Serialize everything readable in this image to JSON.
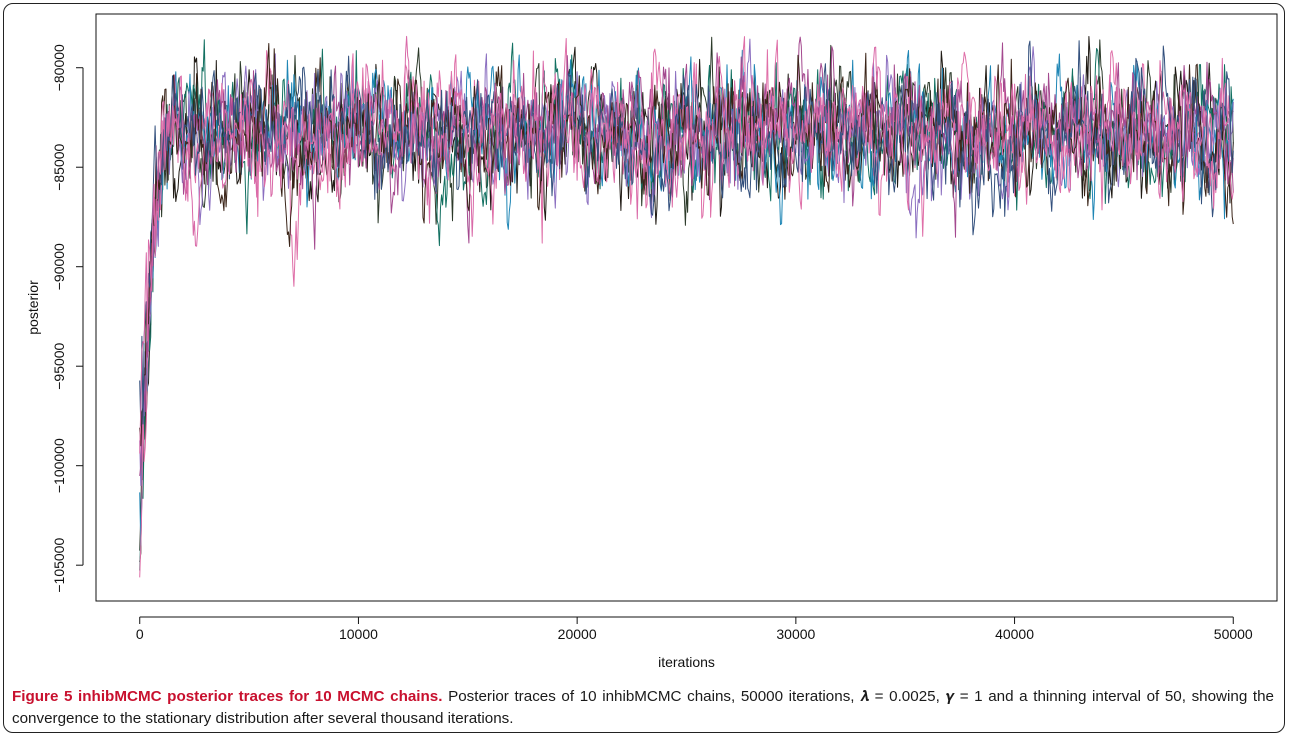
{
  "chart_data": {
    "type": "line",
    "title": "",
    "xlabel": "iterations",
    "ylabel": "posterior",
    "xlim": [
      -2000,
      52000
    ],
    "ylim": [
      -106800,
      -77300
    ],
    "x_ticks": [
      0,
      10000,
      20000,
      30000,
      40000,
      50000
    ],
    "x_tick_labels": [
      "0",
      "10000",
      "20000",
      "30000",
      "40000",
      "50000"
    ],
    "y_ticks": [
      -105000,
      -100000,
      -95000,
      -90000,
      -85000,
      -80000
    ],
    "y_tick_labels": [
      "−105000",
      "−100000",
      "−95000",
      "−90000",
      "−85000",
      "−80000"
    ],
    "grid": false,
    "legend": "none",
    "thinning_interval": 50,
    "n_chains": 10,
    "series": [
      {
        "color": "#1f1a14",
        "start": -101000,
        "min": -104400,
        "dip_depth": 7500,
        "dip_rate": 0.1,
        "seed": 11
      },
      {
        "color": "#2c3a2a",
        "start": -99000,
        "min": -102500,
        "dip_depth": 7000,
        "dip_rate": 0.09,
        "seed": 23
      },
      {
        "color": "#127061",
        "start": -100500,
        "min": -103500,
        "dip_depth": 6000,
        "dip_rate": 0.07,
        "seed": 37
      },
      {
        "color": "#1f86b5",
        "start": -102000,
        "min": -104000,
        "dip_depth": 8000,
        "dip_rate": 0.08,
        "seed": 41
      },
      {
        "color": "#8b6fc0",
        "start": -98500,
        "min": -101000,
        "dip_depth": 6000,
        "dip_rate": 0.07,
        "seed": 53
      },
      {
        "color": "#df6fa8",
        "start": -103800,
        "min": -104000,
        "dip_depth": 9000,
        "dip_rate": 0.08,
        "seed": 67
      },
      {
        "color": "#a4498f",
        "start": -97000,
        "min": -100000,
        "dip_depth": 5000,
        "dip_rate": 0.06,
        "seed": 71
      },
      {
        "color": "#3a2418",
        "start": -96000,
        "min": -99000,
        "dip_depth": 6500,
        "dip_rate": 0.08,
        "seed": 83
      },
      {
        "color": "#33507d",
        "start": -95000,
        "min": -98000,
        "dip_depth": 5000,
        "dip_rate": 0.06,
        "seed": 97
      },
      {
        "color": "#d96aa8",
        "start": -94000,
        "min": -97000,
        "dip_depth": 6000,
        "dip_rate": 0.07,
        "seed": 101
      }
    ],
    "stationary_mean": -83200,
    "stationary_ceiling": -78200,
    "burn_in_iterations": 1500
  },
  "caption": {
    "figure_title": "Figure 5 inhibMCMC posterior traces for 10 MCMC chains",
    "body": "Posterior traces of 10 inhibMCMC chains, 50000 iterations, 𝝀 = 0.0025, 𝜸 = 1 and a thinning interval of 50, showing the convergence to the stationary distribution after several thousand iterations."
  }
}
